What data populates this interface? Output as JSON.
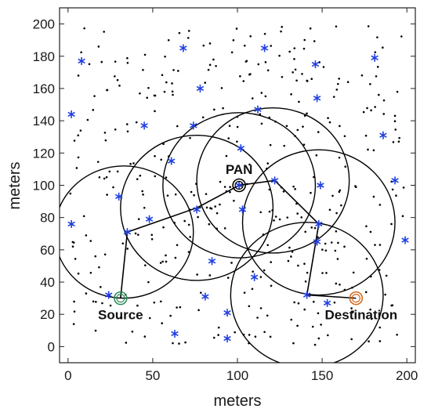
{
  "chart_data": {
    "type": "scatter",
    "title": "",
    "xlabel": "meters",
    "ylabel": "meters",
    "xlim": [
      -5,
      205
    ],
    "ylim": [
      -10,
      210
    ],
    "xticks": [
      0,
      50,
      100,
      150,
      200
    ],
    "yticks": [
      0,
      20,
      40,
      60,
      80,
      100,
      120,
      140,
      160,
      180,
      200
    ],
    "grid": false,
    "colors": {
      "nodes": "#000000",
      "stars": "#1f3fe0",
      "source": "#2e8b57",
      "destination": "#d2691e",
      "pan": "#000000"
    },
    "annotations": [
      {
        "text": "Source",
        "x": 31,
        "y": 17
      },
      {
        "text": "PAN",
        "x": 101,
        "y": 107
      },
      {
        "text": "Destination",
        "x": 173,
        "y": 17
      }
    ],
    "source": {
      "x": 31,
      "y": 30
    },
    "destination": {
      "x": 170,
      "y": 30
    },
    "pan": {
      "x": 101,
      "y": 100
    },
    "coverage_circles": [
      {
        "cx": 33,
        "cy": 71,
        "r": 41
      },
      {
        "cx": 76,
        "cy": 86,
        "r": 45
      },
      {
        "cx": 101,
        "cy": 100,
        "r": 45
      },
      {
        "cx": 121,
        "cy": 103,
        "r": 45
      },
      {
        "cx": 148,
        "cy": 77,
        "r": 45
      },
      {
        "cx": 141,
        "cy": 32,
        "r": 45
      }
    ],
    "route": [
      [
        31,
        30
      ],
      [
        35,
        71
      ],
      [
        76,
        86
      ],
      [
        101,
        100
      ],
      [
        122,
        103
      ],
      [
        148,
        76
      ],
      [
        141,
        32
      ],
      [
        170,
        30
      ]
    ],
    "star_nodes": [
      [
        8,
        177
      ],
      [
        68,
        185
      ],
      [
        116,
        185
      ],
      [
        181,
        179
      ],
      [
        146,
        175
      ],
      [
        2,
        144
      ],
      [
        78,
        160
      ],
      [
        147,
        154
      ],
      [
        45,
        137
      ],
      [
        74,
        137
      ],
      [
        112,
        147
      ],
      [
        186,
        131
      ],
      [
        102,
        123
      ],
      [
        61,
        115
      ],
      [
        149,
        100
      ],
      [
        193,
        103
      ],
      [
        101,
        100
      ],
      [
        122,
        103
      ],
      [
        30,
        93
      ],
      [
        2,
        76
      ],
      [
        48,
        79
      ],
      [
        76,
        85
      ],
      [
        103,
        85
      ],
      [
        148,
        76
      ],
      [
        35,
        71
      ],
      [
        147,
        65
      ],
      [
        199,
        66
      ],
      [
        85,
        53
      ],
      [
        110,
        43
      ],
      [
        24,
        32
      ],
      [
        141,
        32
      ],
      [
        81,
        31
      ],
      [
        153,
        27
      ],
      [
        94,
        21
      ],
      [
        63,
        8
      ],
      [
        94,
        5
      ]
    ],
    "random_nodes_count": 400
  }
}
